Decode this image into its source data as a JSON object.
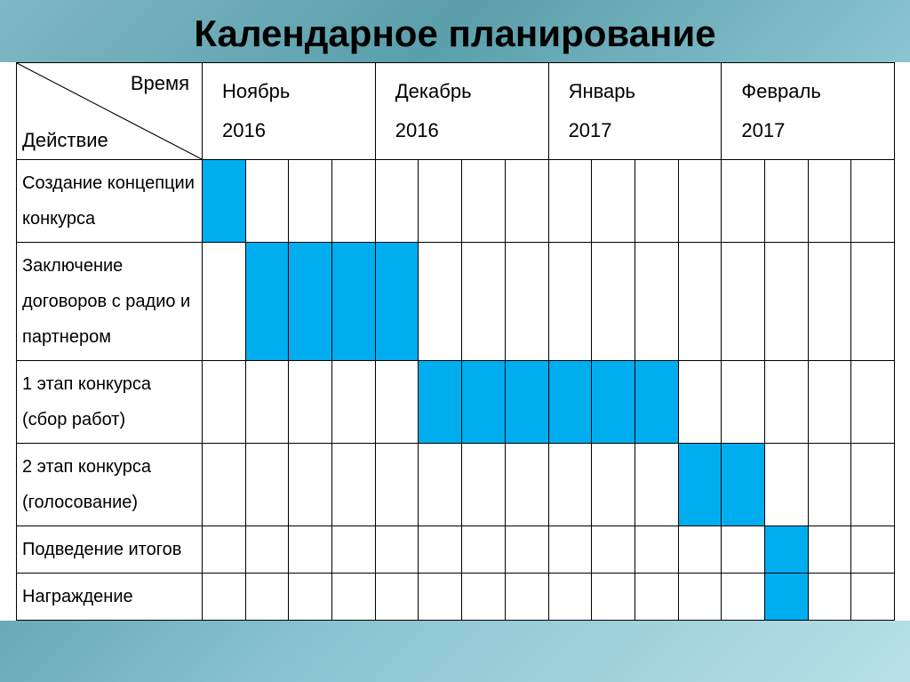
{
  "title": "Календарное планирование",
  "header": {
    "corner_top": "Время",
    "corner_bottom": "Действие",
    "months": [
      "Ноябрь 2016",
      "Декабрь 2016",
      "Январь 2017",
      "Февраль 2017"
    ],
    "weeks_per_month": 4
  },
  "style": {
    "fill_color": "#00aeef",
    "border_color": "#000000",
    "bg_color": "#ffffff",
    "title_fontsize": 42,
    "label_fontsize": 20,
    "header_fontsize": 22
  },
  "rows": [
    {
      "label": "Создание концепции конкурса",
      "cells": [
        1,
        0,
        0,
        0,
        0,
        0,
        0,
        0,
        0,
        0,
        0,
        0,
        0,
        0,
        0,
        0
      ]
    },
    {
      "label": "Заключение договоров с радио и партнером",
      "cells": [
        0,
        1,
        1,
        1,
        1,
        0,
        0,
        0,
        0,
        0,
        0,
        0,
        0,
        0,
        0,
        0
      ]
    },
    {
      "label": "1 этап конкурса (сбор работ)",
      "cells": [
        0,
        0,
        0,
        0,
        0,
        1,
        1,
        1,
        1,
        1,
        1,
        0,
        0,
        0,
        0,
        0
      ]
    },
    {
      "label": "2 этап конкурса (голосование)",
      "cells": [
        0,
        0,
        0,
        0,
        0,
        0,
        0,
        0,
        0,
        0,
        0,
        1,
        1,
        0,
        0,
        0
      ]
    },
    {
      "label": "Подведение итогов",
      "cells": [
        0,
        0,
        0,
        0,
        0,
        0,
        0,
        0,
        0,
        0,
        0,
        0,
        0,
        1,
        0,
        0
      ]
    },
    {
      "label": "Награждение",
      "cells": [
        0,
        0,
        0,
        0,
        0,
        0,
        0,
        0,
        0,
        0,
        0,
        0,
        0,
        1,
        0,
        0
      ]
    }
  ]
}
